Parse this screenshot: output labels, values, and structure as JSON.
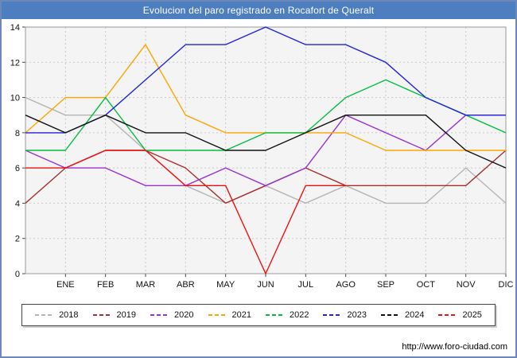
{
  "title": "Evolucion del paro registrado en Rocafort de Queralt",
  "footer": {
    "url": "http://www.foro-ciudad.com"
  },
  "colors": {
    "title_bar": "#4d7ebf",
    "frame_border": "#6d87b8",
    "plot_bg": "#f4f4f4",
    "grid": "#c9c9c9",
    "plot_border": "#999999",
    "axis_text": "#111111"
  },
  "chart_data": {
    "type": "line",
    "title": "Evolucion del paro registrado en Rocafort de Queralt",
    "xlabel": "",
    "ylabel": "",
    "ylim": [
      0,
      14
    ],
    "ytick_step": 2,
    "grid": true,
    "legend_position": "bottom",
    "categories": [
      "",
      "ENE",
      "FEB",
      "MAR",
      "ABR",
      "MAY",
      "JUN",
      "JUL",
      "AGO",
      "SEP",
      "OCT",
      "NOV",
      "DIC"
    ],
    "series": [
      {
        "name": "2018",
        "color": "#b4b4b4",
        "values": [
          10,
          9,
          9,
          7,
          5,
          4,
          5,
          4,
          5,
          4,
          4,
          6,
          4
        ]
      },
      {
        "name": "2019",
        "color": "#aa2e2e",
        "values": [
          4,
          6,
          7,
          7,
          6,
          4,
          5,
          6,
          5,
          5,
          5,
          5,
          7
        ]
      },
      {
        "name": "2020",
        "color": "#9933cc",
        "values": [
          7,
          6,
          6,
          5,
          5,
          6,
          5,
          6,
          9,
          8,
          7,
          9,
          9
        ]
      },
      {
        "name": "2021",
        "color": "#ffa500",
        "values": [
          8,
          10,
          10,
          13,
          9,
          8,
          8,
          8,
          8,
          7,
          7,
          7,
          7
        ]
      },
      {
        "name": "2022",
        "color": "#00c040",
        "values": [
          7,
          7,
          10,
          7,
          7,
          7,
          8,
          8,
          10,
          11,
          10,
          9,
          8
        ]
      },
      {
        "name": "2023",
        "color": "#2222dd",
        "values": [
          8,
          8,
          9,
          11,
          13,
          13,
          14,
          13,
          13,
          12,
          10,
          9,
          9
        ]
      },
      {
        "name": "2024",
        "color": "#111111",
        "values": [
          9,
          8,
          9,
          8,
          8,
          7,
          7,
          8,
          9,
          9,
          9,
          7,
          6
        ]
      },
      {
        "name": "2025",
        "color": "#ee1111",
        "values": [
          6,
          6,
          7,
          7,
          5,
          5,
          0,
          5,
          5,
          null,
          null,
          null,
          null
        ]
      }
    ]
  }
}
